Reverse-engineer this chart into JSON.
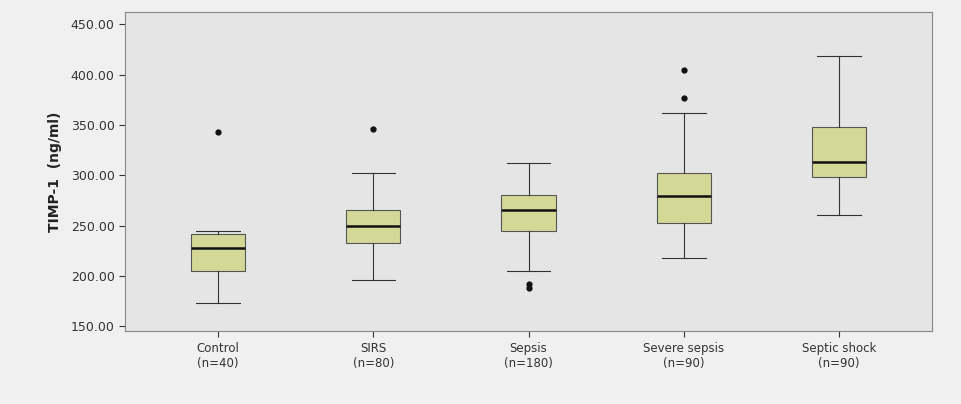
{
  "categories": [
    "Control\n(n=40)",
    "SIRS\n(n=80)",
    "Sepsis\n(n=180)",
    "Severe sepsis\n(n=90)",
    "Septic shock\n(n=90)"
  ],
  "ylabel": "TIMP-1  (ng/ml)",
  "ylim": [
    145,
    462
  ],
  "yticks": [
    150.0,
    200.0,
    250.0,
    300.0,
    350.0,
    400.0,
    450.0
  ],
  "ytick_labels": [
    "150.00",
    "200.00",
    "250.00",
    "300.00",
    "350.00",
    "400.00",
    "450.00"
  ],
  "box_color": "#d4d896",
  "box_edge_color": "#555555",
  "median_color": "#111111",
  "whisker_color": "#333333",
  "flier_color": "#111111",
  "background_color": "#e5e5e5",
  "fig_background_color": "#f0f0f0",
  "boxes": [
    {
      "q1": 205,
      "median": 228,
      "q3": 242,
      "whislo": 173,
      "whishi": 245,
      "fliers": [
        343
      ]
    },
    {
      "q1": 233,
      "median": 250,
      "q3": 265,
      "whislo": 196,
      "whishi": 302,
      "fliers": [
        346
      ]
    },
    {
      "q1": 245,
      "median": 265,
      "q3": 280,
      "whislo": 205,
      "whishi": 312,
      "fliers": [
        188,
        192
      ]
    },
    {
      "q1": 253,
      "median": 279,
      "q3": 302,
      "whislo": 218,
      "whishi": 362,
      "fliers": [
        377,
        405
      ]
    },
    {
      "q1": 298,
      "median": 313,
      "q3": 348,
      "whislo": 260,
      "whishi": 418,
      "fliers": []
    }
  ],
  "figsize": [
    9.61,
    4.04
  ],
  "dpi": 100,
  "box_width": 0.35,
  "xlim": [
    0.4,
    5.6
  ]
}
